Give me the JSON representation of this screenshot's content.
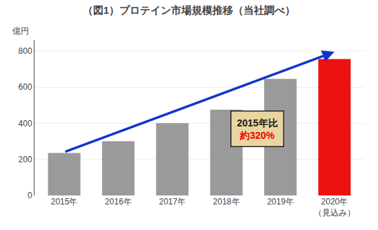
{
  "chart_data": {
    "type": "bar",
    "title": "（図1）プロテイン市場規模推移（当社調べ）",
    "ylabel": "億円",
    "categories": [
      "2015年",
      "2016年",
      "2017年",
      "2018年",
      "2019年",
      "2020年"
    ],
    "values": [
      235,
      300,
      400,
      475,
      645,
      755
    ],
    "colors": [
      "#9a9a9a",
      "#9a9a9a",
      "#9a9a9a",
      "#9a9a9a",
      "#9a9a9a",
      "#ee1111"
    ],
    "ylim": [
      0,
      860
    ],
    "yticks": [
      0,
      200,
      400,
      600,
      800
    ],
    "grid": true,
    "annotations": [
      {
        "text": "（見込み）",
        "category": "2020年"
      },
      {
        "text": "2015年比",
        "color": "#1a1a1a"
      },
      {
        "text": "約320%",
        "color": "#ee0000"
      }
    ],
    "arrow": {
      "from": {
        "category": "2015年",
        "value": 240
      },
      "to": {
        "category": "2020年",
        "value": 795
      },
      "color": "#1133cc"
    }
  }
}
